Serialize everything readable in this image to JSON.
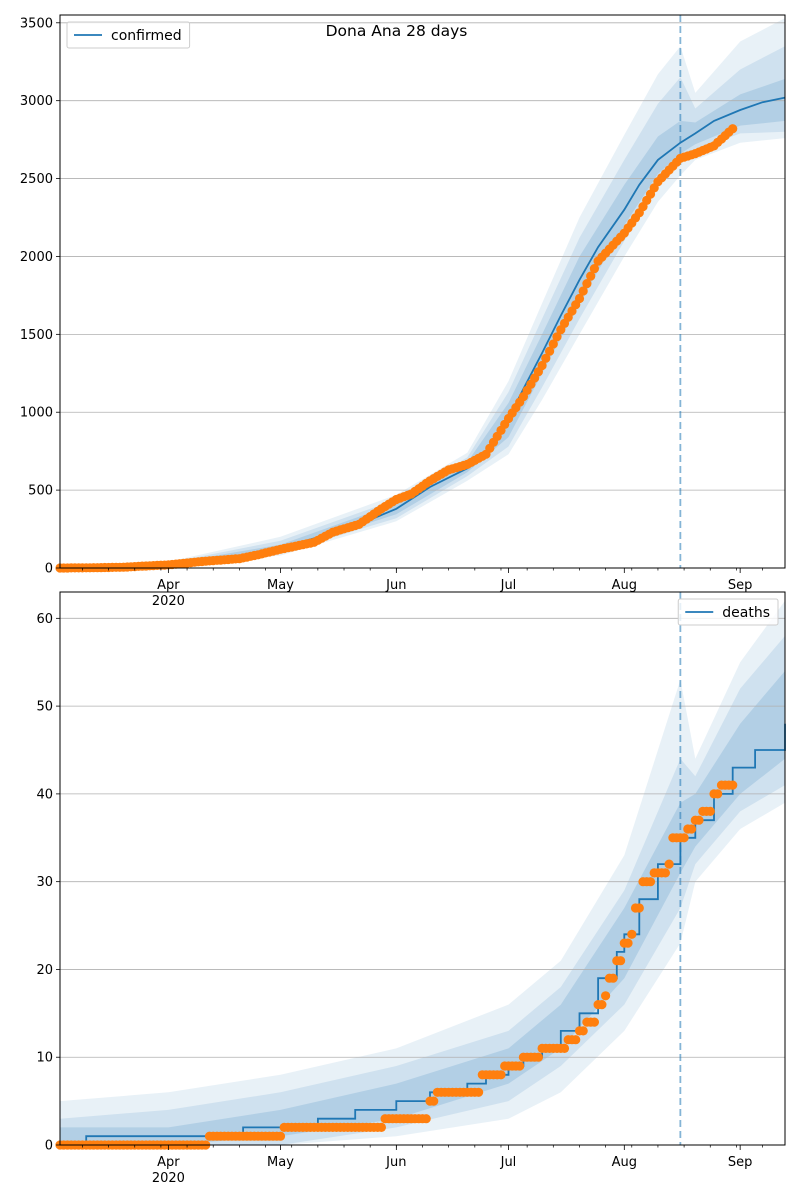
{
  "chart_data": [
    {
      "type": "line",
      "title": "Dona Ana 28 days",
      "legend": {
        "label": "confirmed",
        "placement": "top-left"
      },
      "x_ticks": [
        {
          "date": "2020-04-01",
          "label": "Apr",
          "sub": "2020"
        },
        {
          "date": "2020-05-01",
          "label": "May",
          "sub": ""
        },
        {
          "date": "2020-06-01",
          "label": "Jun",
          "sub": ""
        },
        {
          "date": "2020-07-01",
          "label": "Jul",
          "sub": ""
        },
        {
          "date": "2020-08-01",
          "label": "Aug",
          "sub": ""
        },
        {
          "date": "2020-09-01",
          "label": "Sep",
          "sub": ""
        }
      ],
      "xlim": [
        "2020-03-03",
        "2020-09-13"
      ],
      "ylim": [
        0,
        3550
      ],
      "y_ticks": [
        0,
        500,
        1000,
        1500,
        2000,
        2500,
        3000,
        3500
      ],
      "grid": "horizontal",
      "forecast_start": "2020-08-16",
      "model_curve": {
        "name": "confirmed",
        "points": [
          [
            "2020-03-03",
            0
          ],
          [
            "2020-03-20",
            6
          ],
          [
            "2020-03-30",
            18
          ],
          [
            "2020-04-10",
            45
          ],
          [
            "2020-04-20",
            70
          ],
          [
            "2020-05-01",
            130
          ],
          [
            "2020-05-10",
            190
          ],
          [
            "2020-05-20",
            260
          ],
          [
            "2020-06-01",
            380
          ],
          [
            "2020-06-10",
            520
          ],
          [
            "2020-06-20",
            640
          ],
          [
            "2020-06-25",
            720
          ],
          [
            "2020-07-01",
            960
          ],
          [
            "2020-07-05",
            1150
          ],
          [
            "2020-07-10",
            1380
          ],
          [
            "2020-07-15",
            1620
          ],
          [
            "2020-07-20",
            1850
          ],
          [
            "2020-07-25",
            2060
          ],
          [
            "2020-08-01",
            2300
          ],
          [
            "2020-08-05",
            2460
          ],
          [
            "2020-08-10",
            2620
          ],
          [
            "2020-08-16",
            2730
          ],
          [
            "2020-08-20",
            2790
          ],
          [
            "2020-08-25",
            2870
          ],
          [
            "2020-09-01",
            2940
          ],
          [
            "2020-09-07",
            2990
          ],
          [
            "2020-09-13",
            3020
          ]
        ]
      },
      "bands": [
        {
          "level": "outer",
          "points": [
            [
              "2020-03-03",
              0,
              0
            ],
            [
              "2020-04-01",
              10,
              40
            ],
            [
              "2020-05-01",
              80,
              200
            ],
            [
              "2020-06-01",
              300,
              470
            ],
            [
              "2020-06-20",
              560,
              740
            ],
            [
              "2020-07-01",
              730,
              1200
            ],
            [
              "2020-07-10",
              1080,
              1700
            ],
            [
              "2020-07-20",
              1500,
              2250
            ],
            [
              "2020-08-01",
              2000,
              2780
            ],
            [
              "2020-08-10",
              2350,
              3170
            ],
            [
              "2020-08-16",
              2520,
              3350
            ],
            [
              "2020-08-20",
              2620,
              3050
            ],
            [
              "2020-09-01",
              2730,
              3380
            ],
            [
              "2020-09-13",
              2760,
              3530
            ]
          ]
        },
        {
          "level": "middle",
          "points": [
            [
              "2020-03-03",
              0,
              0
            ],
            [
              "2020-04-01",
              14,
              34
            ],
            [
              "2020-05-01",
              95,
              175
            ],
            [
              "2020-06-01",
              320,
              440
            ],
            [
              "2020-06-20",
              590,
              710
            ],
            [
              "2020-07-01",
              780,
              1130
            ],
            [
              "2020-07-10",
              1160,
              1600
            ],
            [
              "2020-07-20",
              1600,
              2120
            ],
            [
              "2020-08-01",
              2100,
              2620
            ],
            [
              "2020-08-10",
              2450,
              2980
            ],
            [
              "2020-08-16",
              2600,
              3150
            ],
            [
              "2020-08-20",
              2680,
              2950
            ],
            [
              "2020-09-01",
              2790,
              3200
            ],
            [
              "2020-09-13",
              2800,
              3350
            ]
          ]
        },
        {
          "level": "inner",
          "points": [
            [
              "2020-03-03",
              0,
              0
            ],
            [
              "2020-04-01",
              18,
              28
            ],
            [
              "2020-05-01",
              110,
              150
            ],
            [
              "2020-06-01",
              345,
              415
            ],
            [
              "2020-06-20",
              615,
              680
            ],
            [
              "2020-07-01",
              840,
              1060
            ],
            [
              "2020-07-10",
              1250,
              1500
            ],
            [
              "2020-07-20",
              1700,
              2000
            ],
            [
              "2020-08-01",
              2200,
              2460
            ],
            [
              "2020-08-10",
              2530,
              2770
            ],
            [
              "2020-08-16",
              2660,
              2870
            ],
            [
              "2020-08-20",
              2720,
              2860
            ],
            [
              "2020-09-01",
              2840,
              3040
            ],
            [
              "2020-09-13",
              2870,
              3140
            ]
          ]
        }
      ],
      "observed": {
        "points": [
          [
            "2020-03-03",
            0
          ],
          [
            "2020-03-10",
            1
          ],
          [
            "2020-03-20",
            5
          ],
          [
            "2020-03-25",
            12
          ],
          [
            "2020-04-01",
            20
          ],
          [
            "2020-04-10",
            42
          ],
          [
            "2020-04-20",
            60
          ],
          [
            "2020-04-25",
            85
          ],
          [
            "2020-05-01",
            120
          ],
          [
            "2020-05-10",
            165
          ],
          [
            "2020-05-15",
            230
          ],
          [
            "2020-05-22",
            280
          ],
          [
            "2020-05-28",
            380
          ],
          [
            "2020-06-01",
            440
          ],
          [
            "2020-06-05",
            475
          ],
          [
            "2020-06-10",
            560
          ],
          [
            "2020-06-15",
            630
          ],
          [
            "2020-06-20",
            665
          ],
          [
            "2020-06-25",
            730
          ],
          [
            "2020-07-01",
            960
          ],
          [
            "2020-07-05",
            1100
          ],
          [
            "2020-07-10",
            1300
          ],
          [
            "2020-07-15",
            1530
          ],
          [
            "2020-07-20",
            1730
          ],
          [
            "2020-07-25",
            1970
          ],
          [
            "2020-08-01",
            2150
          ],
          [
            "2020-08-05",
            2280
          ],
          [
            "2020-08-10",
            2480
          ],
          [
            "2020-08-16",
            2630
          ],
          [
            "2020-08-20",
            2660
          ],
          [
            "2020-08-25",
            2710
          ],
          [
            "2020-08-30",
            2820
          ]
        ]
      }
    },
    {
      "type": "line",
      "title": "",
      "legend": {
        "label": "deaths",
        "placement": "top-right"
      },
      "x_ticks": [
        {
          "date": "2020-04-01",
          "label": "Apr",
          "sub": "2020"
        },
        {
          "date": "2020-05-01",
          "label": "May",
          "sub": ""
        },
        {
          "date": "2020-06-01",
          "label": "Jun",
          "sub": ""
        },
        {
          "date": "2020-07-01",
          "label": "Jul",
          "sub": ""
        },
        {
          "date": "2020-08-01",
          "label": "Aug",
          "sub": ""
        },
        {
          "date": "2020-09-01",
          "label": "Sep",
          "sub": ""
        }
      ],
      "xlim": [
        "2020-03-03",
        "2020-09-13"
      ],
      "ylim": [
        0,
        63
      ],
      "y_ticks": [
        0,
        10,
        20,
        30,
        40,
        50,
        60
      ],
      "grid": "horizontal",
      "forecast_start": "2020-08-16",
      "model_curve": {
        "name": "deaths",
        "points": [
          [
            "2020-03-03",
            0
          ],
          [
            "2020-03-10",
            1
          ],
          [
            "2020-04-20",
            1
          ],
          [
            "2020-04-21",
            2
          ],
          [
            "2020-05-10",
            2
          ],
          [
            "2020-05-11",
            3
          ],
          [
            "2020-05-20",
            3
          ],
          [
            "2020-05-21",
            4
          ],
          [
            "2020-06-01",
            5
          ],
          [
            "2020-06-10",
            6
          ],
          [
            "2020-06-20",
            7
          ],
          [
            "2020-06-25",
            8
          ],
          [
            "2020-07-01",
            9
          ],
          [
            "2020-07-05",
            10
          ],
          [
            "2020-07-10",
            11
          ],
          [
            "2020-07-15",
            13
          ],
          [
            "2020-07-20",
            15
          ],
          [
            "2020-07-25",
            19
          ],
          [
            "2020-07-30",
            22
          ],
          [
            "2020-08-01",
            24
          ],
          [
            "2020-08-05",
            28
          ],
          [
            "2020-08-10",
            32
          ],
          [
            "2020-08-16",
            35
          ],
          [
            "2020-08-20",
            37
          ],
          [
            "2020-08-25",
            40
          ],
          [
            "2020-08-30",
            43
          ],
          [
            "2020-09-05",
            45
          ],
          [
            "2020-09-13",
            48
          ]
        ]
      },
      "bands": [
        {
          "level": "outer",
          "points": [
            [
              "2020-03-03",
              0,
              5
            ],
            [
              "2020-04-01",
              0,
              6
            ],
            [
              "2020-05-01",
              0,
              8
            ],
            [
              "2020-06-01",
              1,
              11
            ],
            [
              "2020-07-01",
              3,
              16
            ],
            [
              "2020-07-15",
              6,
              21
            ],
            [
              "2020-08-01",
              13,
              33
            ],
            [
              "2020-08-16",
              23,
              53
            ],
            [
              "2020-08-20",
              30,
              44
            ],
            [
              "2020-09-01",
              36,
              55
            ],
            [
              "2020-09-13",
              39,
              62
            ]
          ]
        },
        {
          "level": "middle",
          "points": [
            [
              "2020-03-03",
              0,
              3
            ],
            [
              "2020-04-01",
              0,
              4
            ],
            [
              "2020-05-01",
              0,
              6
            ],
            [
              "2020-06-01",
              2,
              9
            ],
            [
              "2020-07-01",
              5,
              13
            ],
            [
              "2020-07-15",
              9,
              18
            ],
            [
              "2020-08-01",
              16,
              29
            ],
            [
              "2020-08-16",
              27,
              44
            ],
            [
              "2020-08-20",
              32,
              42
            ],
            [
              "2020-09-01",
              38,
              52
            ],
            [
              "2020-09-13",
              41,
              58
            ]
          ]
        },
        {
          "level": "inner",
          "points": [
            [
              "2020-03-03",
              0,
              2
            ],
            [
              "2020-04-01",
              0,
              2
            ],
            [
              "2020-05-01",
              1,
              4
            ],
            [
              "2020-06-01",
              3,
              7
            ],
            [
              "2020-07-01",
              7,
              11
            ],
            [
              "2020-07-15",
              11,
              16
            ],
            [
              "2020-08-01",
              19,
              27
            ],
            [
              "2020-08-16",
              31,
              39
            ],
            [
              "2020-08-20",
              34,
              40
            ],
            [
              "2020-09-01",
              40,
              48
            ],
            [
              "2020-09-13",
              44,
              54
            ]
          ]
        }
      ],
      "observed": {
        "points": [
          [
            "2020-03-03",
            0
          ],
          [
            "2020-03-15",
            0
          ],
          [
            "2020-03-30",
            0
          ],
          [
            "2020-04-11",
            0
          ],
          [
            "2020-04-12",
            1
          ],
          [
            "2020-04-25",
            1
          ],
          [
            "2020-05-01",
            1
          ],
          [
            "2020-05-02",
            2
          ],
          [
            "2020-05-15",
            2
          ],
          [
            "2020-05-28",
            2
          ],
          [
            "2020-05-29",
            3
          ],
          [
            "2020-06-09",
            3
          ],
          [
            "2020-06-10",
            5
          ],
          [
            "2020-06-12",
            6
          ],
          [
            "2020-06-22",
            6
          ],
          [
            "2020-06-24",
            8
          ],
          [
            "2020-06-28",
            8
          ],
          [
            "2020-06-30",
            9
          ],
          [
            "2020-07-03",
            9
          ],
          [
            "2020-07-05",
            10
          ],
          [
            "2020-07-10",
            11
          ],
          [
            "2020-07-15",
            11
          ],
          [
            "2020-07-17",
            12
          ],
          [
            "2020-07-20",
            13
          ],
          [
            "2020-07-22",
            14
          ],
          [
            "2020-07-25",
            16
          ],
          [
            "2020-07-27",
            17
          ],
          [
            "2020-07-28",
            19
          ],
          [
            "2020-07-30",
            21
          ],
          [
            "2020-08-01",
            23
          ],
          [
            "2020-08-03",
            24
          ],
          [
            "2020-08-04",
            27
          ],
          [
            "2020-08-06",
            30
          ],
          [
            "2020-08-08",
            30
          ],
          [
            "2020-08-09",
            31
          ],
          [
            "2020-08-12",
            31
          ],
          [
            "2020-08-13",
            32
          ],
          [
            "2020-08-14",
            35
          ],
          [
            "2020-08-17",
            35
          ],
          [
            "2020-08-18",
            36
          ],
          [
            "2020-08-20",
            37
          ],
          [
            "2020-08-22",
            38
          ],
          [
            "2020-08-25",
            40
          ],
          [
            "2020-08-27",
            41
          ],
          [
            "2020-08-30",
            41
          ]
        ]
      }
    }
  ],
  "colors": {
    "model_line": "#1f77b4",
    "band_fill": "#1f77b4",
    "observed": "#ff7f0e",
    "grid": "#b0b0b0",
    "axis": "#000000",
    "forecast_line": "#1f77b4"
  }
}
